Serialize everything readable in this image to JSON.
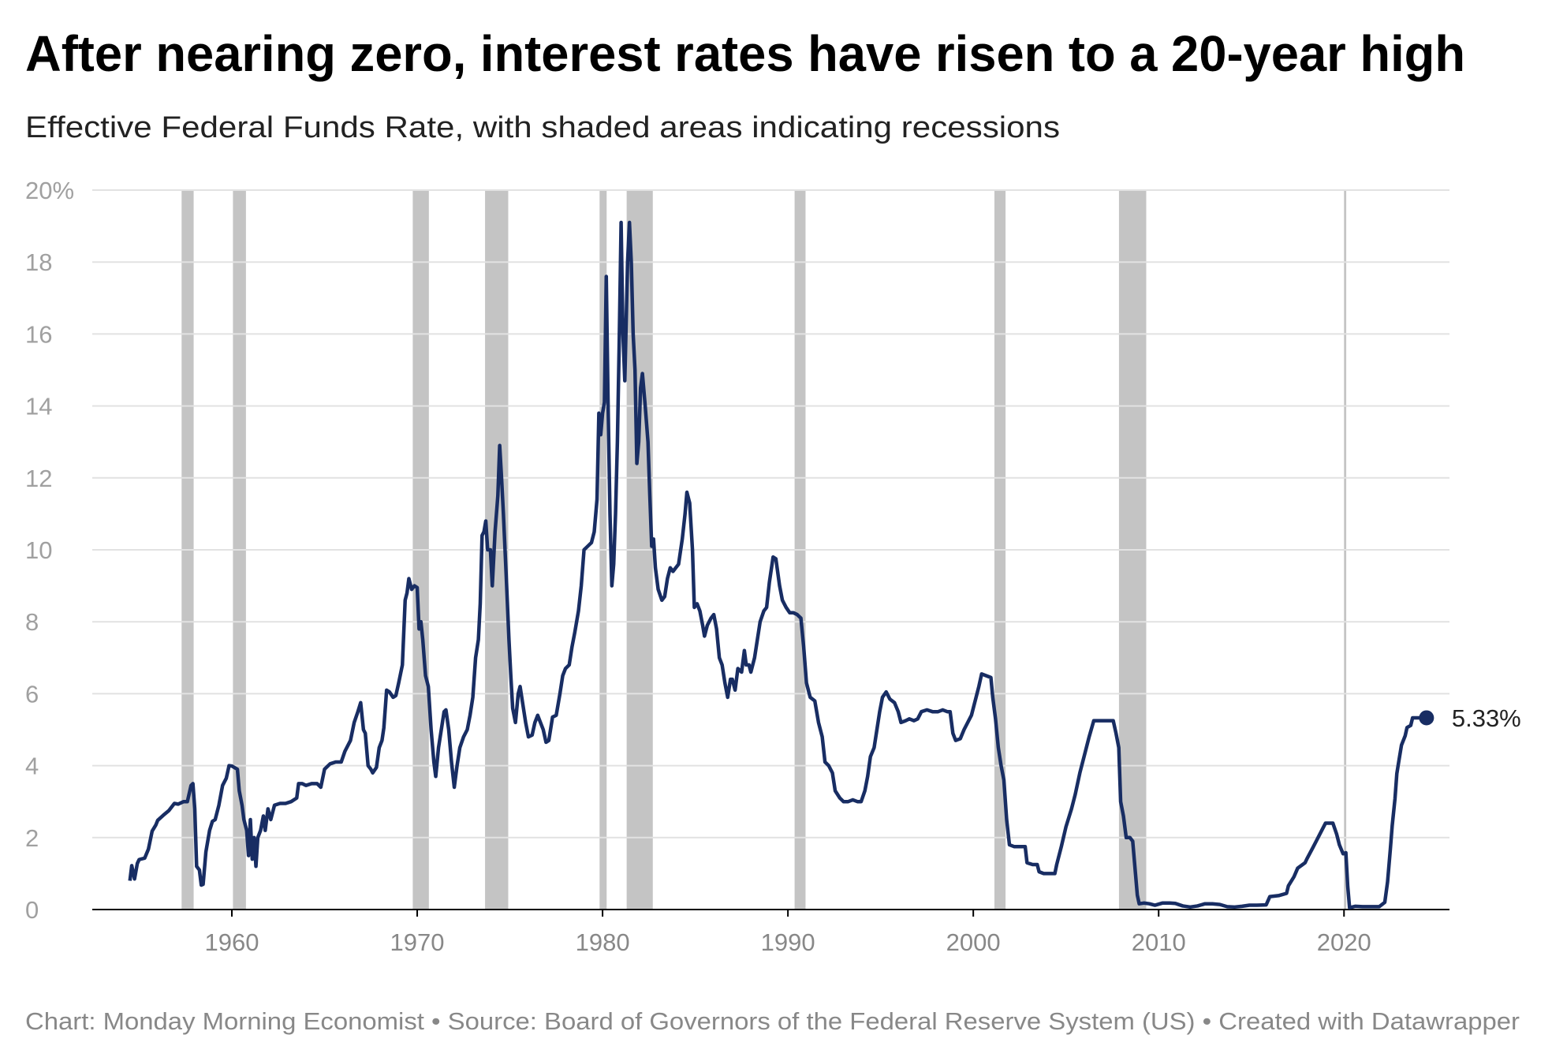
{
  "chart_data": {
    "type": "line",
    "title": "After nearing zero, interest rates have risen to a 20-year high",
    "subtitle": "Effective Federal Funds Rate, with shaded areas indicating recessions",
    "footer": "Chart: Monday Morning Economist • Source: Board of Governors of the Federal Reserve System (US) • Created with Datawrapper",
    "xlim": [
      1952.47,
      2025.69
    ],
    "xticks": [
      1960,
      1970,
      1980,
      1990,
      2000,
      2010,
      2020
    ],
    "ylim": [
      0,
      20
    ],
    "yticks": [
      0,
      2,
      4,
      6,
      8,
      10,
      12,
      14,
      16,
      18,
      {
        "value": 20,
        "label": "20%"
      }
    ],
    "grid": true,
    "recession_color": "#c4c4c4",
    "recessions": [
      [
        1957.29,
        1957.94
      ],
      [
        1960.06,
        1960.76
      ],
      [
        1969.76,
        1970.63
      ],
      [
        1973.66,
        1974.91
      ],
      [
        1979.84,
        1980.22
      ],
      [
        1981.3,
        1982.71
      ],
      [
        1990.36,
        1990.95
      ],
      [
        2001.14,
        2001.74
      ],
      [
        2007.86,
        2009.33
      ],
      [
        2020.0,
        2020.12
      ]
    ],
    "series": [
      {
        "color": "#182d63",
        "x": [
          1954.5,
          1954.6,
          1954.75,
          1954.9,
          1955.0,
          1955.3,
          1955.5,
          1955.7,
          1955.9,
          1956.0,
          1956.3,
          1956.6,
          1956.9,
          1957.1,
          1957.4,
          1957.6,
          1957.8,
          1957.9,
          1958.0,
          1958.1,
          1958.25,
          1958.35,
          1958.45,
          1958.6,
          1958.8,
          1958.95,
          1959.1,
          1959.3,
          1959.5,
          1959.7,
          1959.85,
          1960.0,
          1960.3,
          1960.4,
          1960.55,
          1960.65,
          1960.8,
          1960.9,
          1961.0,
          1961.1,
          1961.2,
          1961.3,
          1961.4,
          1961.55,
          1961.7,
          1961.8,
          1961.95,
          1962.1,
          1962.3,
          1962.6,
          1962.9,
          1963.2,
          1963.5,
          1963.6,
          1963.8,
          1964.0,
          1964.3,
          1964.6,
          1964.8,
          1965.0,
          1965.3,
          1965.6,
          1965.9,
          1966.1,
          1966.4,
          1966.6,
          1966.8,
          1966.95,
          1967.1,
          1967.2,
          1967.35,
          1967.5,
          1967.6,
          1967.8,
          1967.95,
          1968.1,
          1968.2,
          1968.35,
          1968.5,
          1968.7,
          1968.85,
          1969.0,
          1969.2,
          1969.35,
          1969.45,
          1969.55,
          1969.7,
          1969.85,
          1970.0,
          1970.1,
          1970.2,
          1970.3,
          1970.45,
          1970.6,
          1970.75,
          1970.9,
          1971.0,
          1971.15,
          1971.3,
          1971.45,
          1971.55,
          1971.7,
          1971.85,
          1972.0,
          1972.15,
          1972.3,
          1972.5,
          1972.7,
          1972.85,
          1973.0,
          1973.15,
          1973.3,
          1973.4,
          1973.5,
          1973.6,
          1973.7,
          1973.8,
          1973.95,
          1974.05,
          1974.2,
          1974.35,
          1974.45,
          1974.55,
          1974.65,
          1974.8,
          1974.95,
          1975.05,
          1975.15,
          1975.3,
          1975.45,
          1975.55,
          1975.7,
          1975.85,
          1976.0,
          1976.2,
          1976.35,
          1976.5,
          1976.65,
          1976.8,
          1976.95,
          1977.1,
          1977.3,
          1977.5,
          1977.7,
          1977.85,
          1978.0,
          1978.2,
          1978.35,
          1978.5,
          1978.7,
          1978.85,
          1979.0,
          1979.2,
          1979.4,
          1979.55,
          1979.7,
          1979.8,
          1979.9,
          1980.0,
          1980.1,
          1980.2,
          1980.3,
          1980.4,
          1980.5,
          1980.6,
          1980.7,
          1980.8,
          1980.9,
          1981.0,
          1981.1,
          1981.2,
          1981.35,
          1981.45,
          1981.55,
          1981.65,
          1981.75,
          1981.85,
          1981.95,
          1982.05,
          1982.15,
          1982.3,
          1982.45,
          1982.55,
          1982.65,
          1982.75,
          1982.85,
          1983.0,
          1983.2,
          1983.35,
          1983.5,
          1983.65,
          1983.8,
          1983.95,
          1984.1,
          1984.3,
          1984.45,
          1984.55,
          1984.7,
          1984.85,
          1984.95,
          1985.1,
          1985.25,
          1985.4,
          1985.5,
          1985.65,
          1985.85,
          1986.0,
          1986.15,
          1986.3,
          1986.45,
          1986.6,
          1986.75,
          1986.9,
          1987.0,
          1987.15,
          1987.3,
          1987.5,
          1987.65,
          1987.75,
          1987.9,
          1988.0,
          1988.2,
          1988.35,
          1988.5,
          1988.7,
          1988.85,
          1989.0,
          1989.2,
          1989.35,
          1989.55,
          1989.7,
          1989.9,
          1990.1,
          1990.3,
          1990.5,
          1990.7,
          1990.85,
          1991.0,
          1991.2,
          1991.45,
          1991.65,
          1991.85,
          1992.0,
          1992.2,
          1992.4,
          1992.55,
          1992.8,
          1993.0,
          1993.25,
          1993.5,
          1993.75,
          1993.95,
          1994.15,
          1994.3,
          1994.45,
          1994.65,
          1994.8,
          1994.95,
          1995.1,
          1995.3,
          1995.5,
          1995.75,
          1995.95,
          1996.1,
          1996.35,
          1996.55,
          1996.8,
          1997.0,
          1997.2,
          1997.5,
          1997.8,
          1998.1,
          1998.35,
          1998.6,
          1998.75,
          1998.9,
          1999.05,
          1999.3,
          1999.5,
          1999.7,
          1999.9,
          2000.1,
          2000.3,
          2000.45,
          2000.7,
          2000.95,
          2001.05,
          2001.2,
          2001.35,
          2001.5,
          2001.65,
          2001.8,
          2001.95,
          2002.2,
          2002.5,
          2002.8,
          2002.9,
          2003.2,
          2003.45,
          2003.55,
          2003.8,
          2004.1,
          2004.4,
          2004.5,
          2004.75,
          2005.0,
          2005.3,
          2005.5,
          2005.75,
          2006.0,
          2006.25,
          2006.5,
          2006.75,
          2007.0,
          2007.3,
          2007.55,
          2007.7,
          2007.85,
          2007.95,
          2008.1,
          2008.25,
          2008.45,
          2008.6,
          2008.75,
          2008.85,
          2008.95,
          2009.2,
          2009.5,
          2009.8,
          2010.2,
          2010.6,
          2010.9,
          2011.3,
          2011.7,
          2012.1,
          2012.5,
          2012.9,
          2013.3,
          2013.7,
          2014.1,
          2014.5,
          2014.9,
          2015.3,
          2015.8,
          2016.0,
          2016.5,
          2016.9,
          2017.0,
          2017.3,
          2017.5,
          2017.9,
          2018.0,
          2018.3,
          2018.5,
          2018.8,
          2019.0,
          2019.4,
          2019.6,
          2019.75,
          2019.95,
          2020.1,
          2020.2,
          2020.3,
          2020.6,
          2021.0,
          2021.5,
          2021.9,
          2022.2,
          2022.35,
          2022.5,
          2022.6,
          2022.75,
          2022.85,
          2022.95,
          2023.1,
          2023.3,
          2023.4,
          2023.6,
          2023.7,
          2024.0,
          2024.2,
          2024.45
        ],
        "values": [
          0.8,
          1.22,
          0.85,
          1.28,
          1.39,
          1.43,
          1.68,
          2.18,
          2.35,
          2.48,
          2.62,
          2.75,
          2.95,
          2.93,
          3.0,
          3.0,
          3.45,
          3.5,
          2.8,
          1.2,
          1.1,
          0.68,
          0.7,
          1.6,
          2.2,
          2.45,
          2.5,
          2.9,
          3.45,
          3.65,
          4.0,
          3.99,
          3.9,
          3.3,
          2.9,
          2.5,
          2.2,
          1.5,
          2.5,
          1.4,
          2.0,
          1.2,
          2.0,
          2.2,
          2.6,
          2.2,
          2.8,
          2.5,
          2.9,
          2.95,
          2.95,
          3.0,
          3.1,
          3.5,
          3.5,
          3.45,
          3.5,
          3.5,
          3.4,
          3.9,
          4.05,
          4.1,
          4.1,
          4.4,
          4.7,
          5.2,
          5.5,
          5.75,
          5.0,
          4.9,
          4.0,
          3.9,
          3.8,
          3.95,
          4.5,
          4.7,
          5.05,
          6.1,
          6.05,
          5.9,
          5.95,
          6.3,
          6.8,
          8.6,
          8.8,
          9.2,
          8.9,
          9.0,
          8.95,
          7.8,
          8.0,
          7.5,
          6.5,
          6.2,
          5.0,
          4.1,
          3.7,
          4.5,
          5.0,
          5.5,
          5.55,
          5.0,
          4.1,
          3.4,
          4.0,
          4.5,
          4.8,
          5.0,
          5.4,
          5.9,
          7.0,
          7.5,
          8.5,
          10.4,
          10.5,
          10.8,
          10.0,
          10.0,
          9.0,
          10.5,
          11.5,
          12.9,
          12.0,
          11.0,
          9.3,
          7.5,
          6.5,
          5.6,
          5.2,
          6.0,
          6.2,
          5.7,
          5.2,
          4.8,
          4.85,
          5.2,
          5.4,
          5.2,
          5.0,
          4.65,
          4.7,
          5.35,
          5.4,
          6.0,
          6.5,
          6.7,
          6.8,
          7.3,
          7.7,
          8.3,
          9.0,
          10.0,
          10.1,
          10.2,
          10.5,
          11.4,
          13.8,
          13.2,
          13.8,
          14.1,
          17.6,
          14.0,
          11.0,
          9.0,
          9.6,
          11.0,
          13.0,
          15.8,
          19.1,
          16.0,
          14.7,
          18.0,
          19.1,
          18.0,
          16.0,
          15.0,
          12.4,
          13.0,
          14.5,
          14.9,
          14.0,
          13.0,
          11.5,
          10.1,
          10.3,
          9.5,
          8.9,
          8.6,
          8.7,
          9.2,
          9.5,
          9.4,
          9.5,
          9.6,
          10.3,
          11.0,
          11.6,
          11.3,
          10.0,
          8.4,
          8.5,
          8.3,
          7.9,
          7.6,
          7.9,
          8.1,
          8.2,
          7.8,
          7.0,
          6.8,
          6.3,
          5.9,
          6.4,
          6.4,
          6.1,
          6.7,
          6.6,
          7.2,
          6.8,
          6.8,
          6.6,
          7.0,
          7.5,
          8.0,
          8.3,
          8.4,
          9.1,
          9.8,
          9.75,
          9.0,
          8.6,
          8.4,
          8.25,
          8.25,
          8.2,
          8.1,
          7.3,
          6.3,
          5.9,
          5.8,
          5.2,
          4.8,
          4.1,
          4.0,
          3.8,
          3.3,
          3.1,
          3.0,
          3.0,
          3.05,
          3.0,
          3.0,
          3.3,
          3.7,
          4.25,
          4.5,
          5.0,
          5.5,
          5.9,
          6.05,
          5.85,
          5.75,
          5.5,
          5.2,
          5.25,
          5.3,
          5.25,
          5.3,
          5.5,
          5.55,
          5.5,
          5.5,
          5.55,
          5.5,
          5.5,
          4.9,
          4.7,
          4.75,
          5.0,
          5.2,
          5.4,
          5.8,
          6.2,
          6.55,
          6.5,
          6.45,
          5.9,
          5.3,
          4.5,
          4.0,
          3.6,
          2.5,
          1.8,
          1.75,
          1.75,
          1.75,
          1.3,
          1.25,
          1.25,
          1.05,
          1.0,
          1.0,
          1.0,
          1.25,
          1.75,
          2.3,
          2.8,
          3.2,
          3.8,
          4.3,
          4.8,
          5.25,
          5.25,
          5.25,
          5.25,
          5.25,
          4.9,
          4.5,
          3.0,
          2.6,
          2.0,
          2.0,
          1.9,
          1.0,
          0.4,
          0.16,
          0.18,
          0.16,
          0.12,
          0.18,
          0.18,
          0.17,
          0.1,
          0.07,
          0.1,
          0.16,
          0.16,
          0.14,
          0.08,
          0.07,
          0.09,
          0.12,
          0.12,
          0.13,
          0.36,
          0.39,
          0.45,
          0.66,
          0.91,
          1.15,
          1.3,
          1.41,
          1.7,
          1.9,
          2.2,
          2.4,
          2.4,
          2.1,
          1.8,
          1.55,
          1.58,
          0.65,
          0.05,
          0.09,
          0.08,
          0.08,
          0.08,
          0.2,
          0.77,
          1.68,
          2.33,
          3.08,
          3.78,
          4.1,
          4.57,
          4.83,
          5.06,
          5.12,
          5.33,
          5.33,
          5.33,
          5.33
        ]
      }
    ],
    "annotation": {
      "x": 2024.45,
      "value": 5.33,
      "label": "5.33%"
    }
  }
}
